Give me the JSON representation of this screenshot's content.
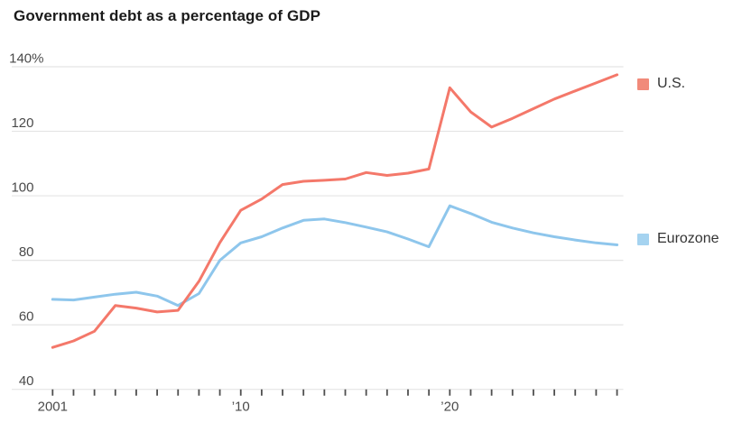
{
  "title": "Government debt as a percentage of GDP",
  "legend": [
    {
      "label": "U.S.",
      "swatch": "#f18a7a"
    },
    {
      "label": "Eurozone",
      "swatch": "#a5d3f0"
    }
  ],
  "chart_data": {
    "type": "line",
    "x": [
      2001,
      2002,
      2003,
      2004,
      2005,
      2006,
      2007,
      2008,
      2009,
      2010,
      2011,
      2012,
      2013,
      2014,
      2015,
      2016,
      2017,
      2018,
      2019,
      2020,
      2021,
      2022,
      2023,
      2024,
      2025,
      2026,
      2027,
      2028
    ],
    "series": [
      {
        "name": "U.S.",
        "color": "#f4786a",
        "values": [
          53.0,
          55.0,
          58.0,
          66.0,
          65.2,
          64.0,
          64.5,
          73.5,
          85.5,
          95.5,
          99.0,
          103.5,
          104.5,
          104.8,
          105.2,
          107.2,
          106.3,
          107.0,
          108.3,
          133.5,
          126.0,
          121.3,
          124.0,
          127.0,
          130.0,
          132.5,
          135.0,
          137.5
        ]
      },
      {
        "name": "Eurozone",
        "color": "#8ec6ec",
        "values": [
          67.9,
          67.7,
          68.6,
          69.5,
          70.1,
          68.9,
          66.0,
          69.7,
          80.0,
          85.4,
          87.3,
          90.0,
          92.4,
          92.8,
          91.7,
          90.3,
          88.8,
          86.6,
          84.2,
          96.9,
          94.5,
          91.8,
          90.0,
          88.5,
          87.3,
          86.3,
          85.4,
          84.8
        ]
      }
    ],
    "title": "Government debt as a percentage of GDP",
    "xlabel": "",
    "ylabel": "",
    "ylim": [
      40,
      140
    ],
    "yticks": [
      40,
      60,
      80,
      100,
      120,
      140
    ],
    "ytick_labels": [
      "40",
      "60",
      "80",
      "100",
      "120",
      "140%"
    ],
    "xtick_labels": [
      {
        "year": 2001,
        "label": "2001"
      },
      {
        "year": 2010,
        "label": "’10"
      },
      {
        "year": 2020,
        "label": "’20"
      }
    ],
    "grid": "horizontal",
    "legend_position": "right",
    "axis_color": "#e4e4e4",
    "tick_color": "#4f4f4f",
    "label_color": "#4a4a4a"
  }
}
